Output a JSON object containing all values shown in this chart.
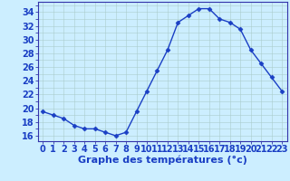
{
  "hours": [
    0,
    1,
    2,
    3,
    4,
    5,
    6,
    7,
    8,
    9,
    10,
    11,
    12,
    13,
    14,
    15,
    16,
    17,
    18,
    19,
    20,
    21,
    22,
    23
  ],
  "temps": [
    19.5,
    19.0,
    18.5,
    17.5,
    17.0,
    17.0,
    16.5,
    16.0,
    16.5,
    19.5,
    22.5,
    25.5,
    28.5,
    32.5,
    33.5,
    34.5,
    34.5,
    33.0,
    32.5,
    31.5,
    28.5,
    26.5,
    24.5,
    22.5
  ],
  "line_color": "#1a3fc4",
  "marker": "D",
  "marker_size": 2.5,
  "bg_color": "#cceeff",
  "plot_bg_color": "#cceeff",
  "grid_color": "#aacccc",
  "xlabel": "Graphe des températures (°c)",
  "xlabel_fontsize": 8,
  "ylabel_ticks": [
    16,
    18,
    20,
    22,
    24,
    26,
    28,
    30,
    32,
    34
  ],
  "ylim": [
    15.2,
    35.5
  ],
  "xlim": [
    -0.5,
    23.5
  ],
  "spine_color": "#3333aa",
  "tick_label_color": "#1a3fc4",
  "tick_label_size": 7,
  "xlabel_color": "#1a3fc4",
  "bottom_bar_color": "#cceeff"
}
